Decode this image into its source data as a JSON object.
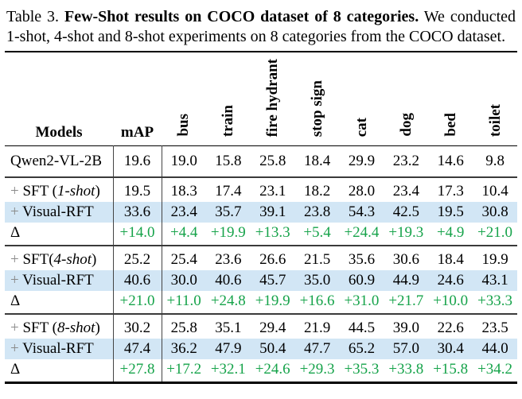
{
  "caption": {
    "label": "Table 3.",
    "title_bold": "Few-Shot results on COCO dataset of 8 categories.",
    "body": "We conducted 1-shot, 4-shot and 8-shot experiments on 8 categories from the COCO dataset."
  },
  "table": {
    "col_headers": {
      "models": "Models",
      "map": "mAP"
    },
    "categories": [
      "bus",
      "train",
      "fire hydrant",
      "stop sign",
      "cat",
      "dog",
      "bed",
      "toilet"
    ],
    "baseline": {
      "label": "Qwen2-VL-2B",
      "map": "19.6",
      "values": [
        "19.0",
        "15.8",
        "25.8",
        "18.4",
        "29.9",
        "23.2",
        "14.6",
        "9.8"
      ]
    },
    "groups": [
      {
        "sft": {
          "plus": "+",
          "pre": " SFT (",
          "shot": "1-shot",
          "post": ")",
          "map": "19.5",
          "values": [
            "18.3",
            "17.4",
            "23.1",
            "18.2",
            "28.0",
            "23.4",
            "17.3",
            "10.4"
          ]
        },
        "rft": {
          "plus": "+",
          "pre": " Visual-RFT",
          "map": "33.6",
          "values": [
            "23.4",
            "35.7",
            "39.1",
            "23.8",
            "54.3",
            "42.5",
            "19.5",
            "30.8"
          ]
        },
        "delta": {
          "label": "Δ",
          "map": "+14.0",
          "values": [
            "+4.4",
            "+19.9",
            "+13.3",
            "+5.4",
            "+24.4",
            "+19.3",
            "+4.9",
            "+21.0"
          ]
        }
      },
      {
        "sft": {
          "plus": "+",
          "pre": " SFT(",
          "shot": "4-shot",
          "post": ")",
          "map": "25.2",
          "values": [
            "25.4",
            "23.6",
            "26.6",
            "21.5",
            "35.6",
            "30.6",
            "18.4",
            "19.9"
          ]
        },
        "rft": {
          "plus": "+",
          "pre": " Visual-RFT",
          "map": "40.6",
          "values": [
            "30.0",
            "40.6",
            "45.7",
            "35.0",
            "60.9",
            "44.9",
            "24.6",
            "43.1"
          ]
        },
        "delta": {
          "label": "Δ",
          "map": "+21.0",
          "values": [
            "+11.0",
            "+24.8",
            "+19.9",
            "+16.6",
            "+31.0",
            "+21.7",
            "+10.0",
            "+33.3"
          ]
        }
      },
      {
        "sft": {
          "plus": "+",
          "pre": " SFT (",
          "shot": "8-shot",
          "post": ")",
          "map": "30.2",
          "values": [
            "25.8",
            "35.1",
            "29.4",
            "21.9",
            "44.5",
            "39.0",
            "22.6",
            "23.5"
          ]
        },
        "rft": {
          "plus": "+",
          "pre": " Visual-RFT",
          "map": "47.4",
          "values": [
            "36.2",
            "47.9",
            "50.4",
            "47.7",
            "65.2",
            "57.0",
            "30.4",
            "44.0"
          ]
        },
        "delta": {
          "label": "Δ",
          "map": "+27.8",
          "values": [
            "+17.2",
            "+32.1",
            "+24.6",
            "+29.3",
            "+35.3",
            "+33.8",
            "+15.8",
            "+34.2"
          ]
        }
      }
    ]
  },
  "colors": {
    "delta_green": "#16A34A",
    "highlight_blue": "#D2E6F5",
    "plus_gray": "#8A8A8A",
    "rule_dark": "#3a3a3a"
  }
}
